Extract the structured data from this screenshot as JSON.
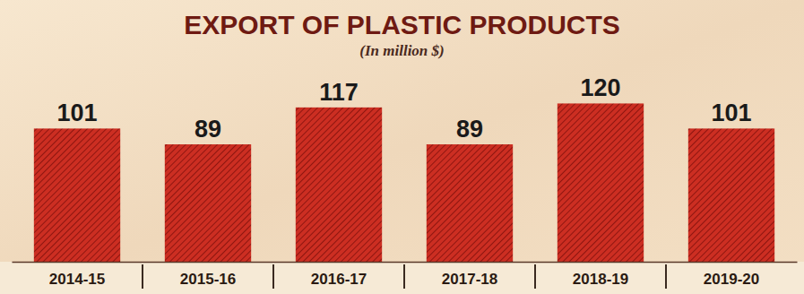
{
  "chart_data": {
    "type": "bar",
    "title": "EXPORT OF PLASTIC PRODUCTS",
    "subtitle": "(In million $)",
    "categories": [
      "2014-15",
      "2015-16",
      "2016-17",
      "2017-18",
      "2018-19",
      "2019-20"
    ],
    "values": [
      101,
      89,
      117,
      89,
      120,
      101
    ],
    "color": "#cc2e22",
    "ylim": [
      0,
      140
    ],
    "data_labels": true,
    "tick_labels": "x"
  }
}
